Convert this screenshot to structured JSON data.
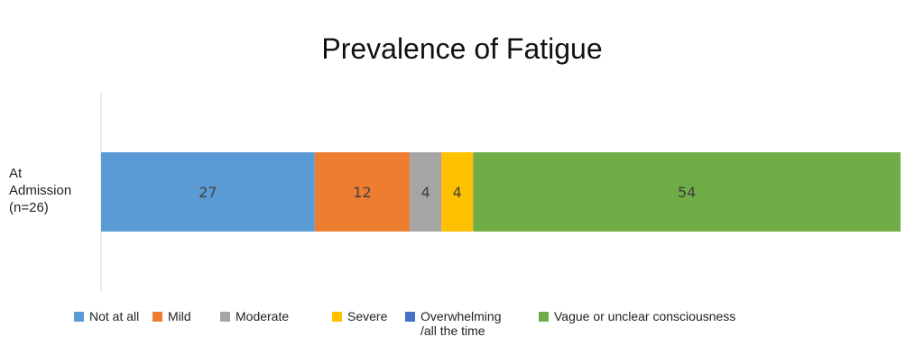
{
  "chart_data": {
    "type": "bar",
    "orientation": "horizontal",
    "stacked": true,
    "title": "Prevalence of Fatigue",
    "categories": [
      "At\nAdmission\n(n=26)"
    ],
    "xlim": [
      0,
      101
    ],
    "series": [
      {
        "name": "Not at all",
        "values": [
          27
        ],
        "color": "#5B9BD5",
        "label": "27"
      },
      {
        "name": "Mild",
        "values": [
          12
        ],
        "color": "#ED7D31",
        "label": "12"
      },
      {
        "name": "Moderate",
        "values": [
          4
        ],
        "color": "#A5A5A5",
        "label": "4"
      },
      {
        "name": "Severe",
        "values": [
          4
        ],
        "color": "#FFC000",
        "label": "4"
      },
      {
        "name": "Overwhelming\n/all the time",
        "values": [
          0
        ],
        "color": "#4472C4",
        "label": ""
      },
      {
        "name": "Vague or unclear consciousness",
        "values": [
          54
        ],
        "color": "#70AD47",
        "label": "54"
      }
    ],
    "legend_position": "bottom",
    "grid": false
  }
}
